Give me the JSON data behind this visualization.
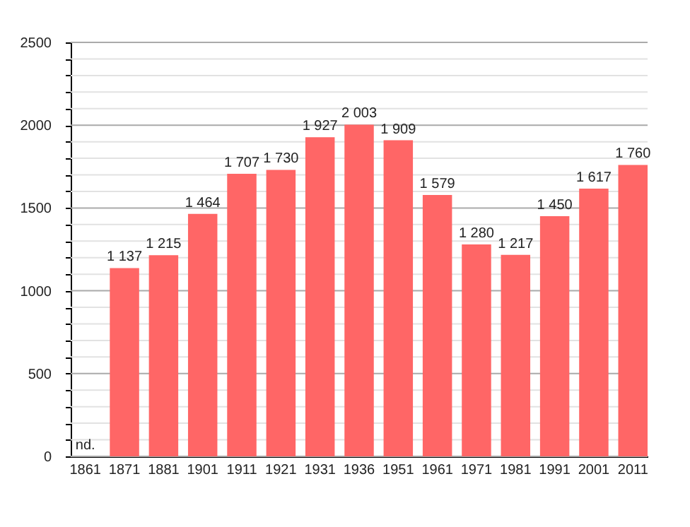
{
  "chart_data": {
    "type": "bar",
    "categories": [
      "1861",
      "1871",
      "1881",
      "1901",
      "1911",
      "1921",
      "1931",
      "1936",
      "1951",
      "1961",
      "1971",
      "1981",
      "1991",
      "2001",
      "2011"
    ],
    "values": [
      null,
      1137,
      1215,
      1464,
      1707,
      1730,
      1927,
      2003,
      1909,
      1579,
      1280,
      1217,
      1450,
      1617,
      1760
    ],
    "value_labels": [
      "nd.",
      "1 137",
      "1 215",
      "1 464",
      "1 707",
      "1 730",
      "1 927",
      "2 003",
      "1 909",
      "1 579",
      "1 280",
      "1 217",
      "1 450",
      "1 617",
      "1 760"
    ],
    "color": "#ff6666",
    "ylim": [
      0,
      2500
    ],
    "yticks": [
      0,
      {
        "value": 100,
        "label": null
      },
      {
        "value": 200,
        "label": null
      },
      {
        "value": 300,
        "label": null
      },
      {
        "value": 400,
        "label": null
      },
      500,
      {
        "value": 600,
        "label": null
      },
      {
        "value": 700,
        "label": null
      },
      {
        "value": 800,
        "label": null
      },
      {
        "value": 900,
        "label": null
      },
      1000,
      {
        "value": 1100,
        "label": null
      },
      {
        "value": 1200,
        "label": null
      },
      {
        "value": 1300,
        "label": null
      },
      {
        "value": 1400,
        "label": null
      },
      1500,
      {
        "value": 1600,
        "label": null
      },
      {
        "value": 1700,
        "label": null
      },
      {
        "value": 1800,
        "label": null
      },
      {
        "value": 1900,
        "label": null
      },
      2000,
      {
        "value": 2100,
        "label": null
      },
      {
        "value": 2200,
        "label": null
      },
      {
        "value": 2300,
        "label": null
      },
      {
        "value": 2400,
        "label": null
      },
      2500
    ],
    "grid": true
  }
}
